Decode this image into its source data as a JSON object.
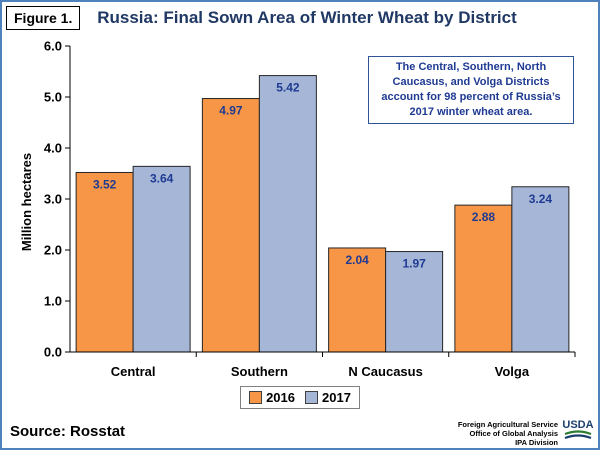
{
  "figure_label": "Figure 1.",
  "callout": {
    "text": "The Central, Southern, North Caucasus, and Volga Districts account for 98 percent of Russia’s 2017 winter wheat area."
  },
  "footer": {
    "source": "Source: Rosstat",
    "agency_lines": [
      "Foreign Agricultural Service",
      "Office of Global Analysis",
      "IPA Division"
    ],
    "logo_text": "USDA",
    "logo_icon": "usda-logo-icon"
  },
  "colors": {
    "title": "#1f3864",
    "series_2016": "#f79646",
    "series_2017": "#a5b6d6",
    "data_label": "#1f3a93",
    "frame": "#4f81bd"
  },
  "chart_data": {
    "type": "bar",
    "title": "Russia: Final Sown Area of Winter Wheat by District",
    "xlabel": "",
    "ylabel": "Million hectares",
    "ylim": [
      0,
      6
    ],
    "yticks": [
      "0.0",
      "1.0",
      "2.0",
      "3.0",
      "4.0",
      "5.0",
      "6.0"
    ],
    "categories": [
      "Central",
      "Southern",
      "N Caucasus",
      "Volga"
    ],
    "series": [
      {
        "name": "2016",
        "values": [
          3.52,
          4.97,
          2.04,
          2.88
        ],
        "labels": [
          "3.52",
          "4.97",
          "2.04",
          "2.88"
        ]
      },
      {
        "name": "2017",
        "values": [
          3.64,
          5.42,
          1.97,
          3.24
        ],
        "labels": [
          "3.64",
          "5.42",
          "1.97",
          "3.24"
        ]
      }
    ],
    "grid": false,
    "legend": "bottom-center"
  }
}
